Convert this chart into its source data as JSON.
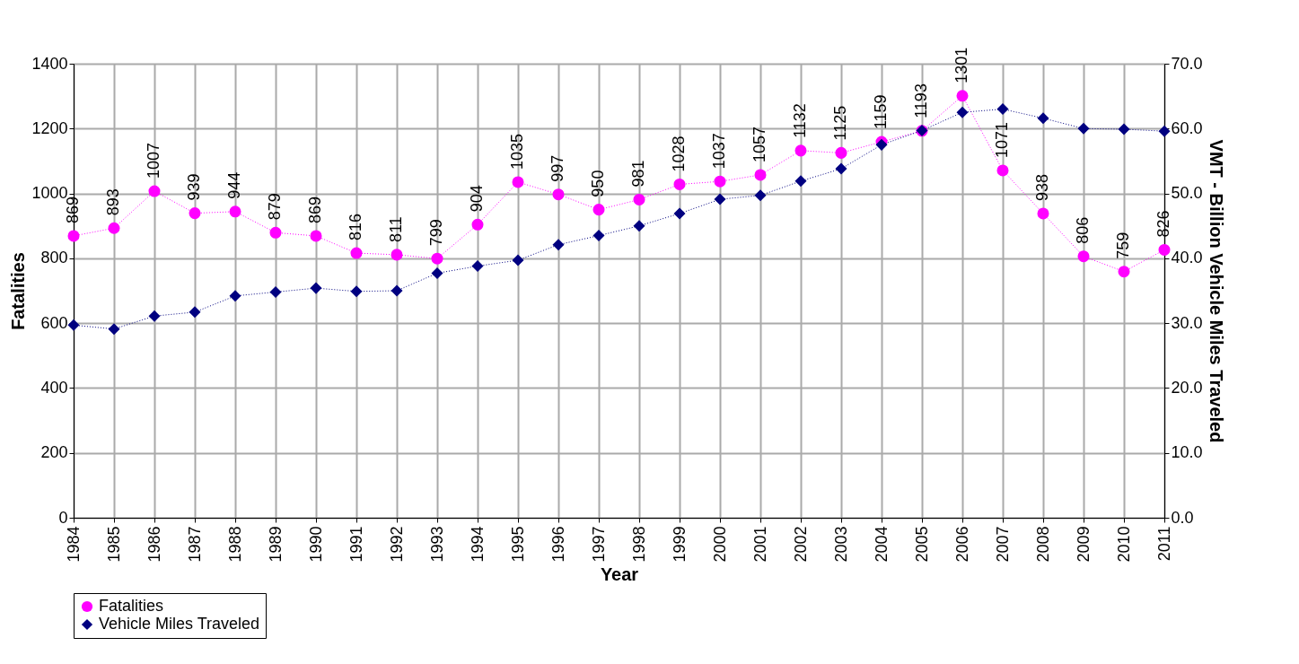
{
  "chart_data": {
    "type": "line",
    "xlabel": "Year",
    "ylabel": "Fatalities",
    "y2label": "VMT - Billion Vehicle Miles Traveled",
    "categories": [
      "1984",
      "1985",
      "1986",
      "1987",
      "1988",
      "1989",
      "1990",
      "1991",
      "1992",
      "1993",
      "1994",
      "1995",
      "1996",
      "1997",
      "1998",
      "1999",
      "2000",
      "2001",
      "2002",
      "2003",
      "2004",
      "2005",
      "2006",
      "2007",
      "2008",
      "2009",
      "2010",
      "2011"
    ],
    "series": [
      {
        "name": "Fatalities",
        "color": "#ff00ff",
        "marker": "circle",
        "line_style": "dotted",
        "values": [
          869,
          893,
          1007,
          939,
          944,
          879,
          869,
          816,
          811,
          799,
          904,
          1035,
          997,
          950,
          981,
          1028,
          1037,
          1057,
          1132,
          1125,
          1159,
          1193,
          1301,
          1071,
          938,
          806,
          759,
          826
        ],
        "value_labels": [
          "869",
          "893",
          "1007",
          "939",
          "944",
          "879",
          "869",
          "816",
          "811",
          "799",
          "904",
          "1035",
          "997",
          "950",
          "981",
          "1028",
          "1037",
          "1057",
          "1132",
          "1125",
          "1159",
          "1193",
          "1301",
          "1071",
          "938",
          "806",
          "759",
          "826"
        ]
      },
      {
        "name": "Vehicle Miles Traveled",
        "color": "#000080",
        "marker": "diamond",
        "line_style": "dotted",
        "axis": "y2",
        "values": [
          29.7,
          29.1,
          31.1,
          31.7,
          34.2,
          34.8,
          35.4,
          34.9,
          35.0,
          37.7,
          38.8,
          39.7,
          42.1,
          43.5,
          45.0,
          46.9,
          49.1,
          49.7,
          51.9,
          53.8,
          57.5,
          59.7,
          62.5,
          63.0,
          61.6,
          60.0,
          59.9,
          59.6
        ]
      }
    ],
    "ylim": [
      0,
      1400
    ],
    "yticks": [
      0,
      200,
      400,
      600,
      800,
      1000,
      1200,
      1400
    ],
    "y2lim": [
      0,
      70
    ],
    "y2ticks": [
      {
        "value": 0,
        "label": "0.0"
      },
      {
        "value": 10,
        "label": "10.0"
      },
      {
        "value": 20,
        "label": "20.0"
      },
      {
        "value": 30,
        "label": "30.0"
      },
      {
        "value": 40,
        "label": "40.0"
      },
      {
        "value": 50,
        "label": "50.0"
      },
      {
        "value": 60,
        "label": "60.0"
      },
      {
        "value": 70,
        "label": "70.0"
      }
    ],
    "grid": true,
    "legend": "bottom"
  }
}
